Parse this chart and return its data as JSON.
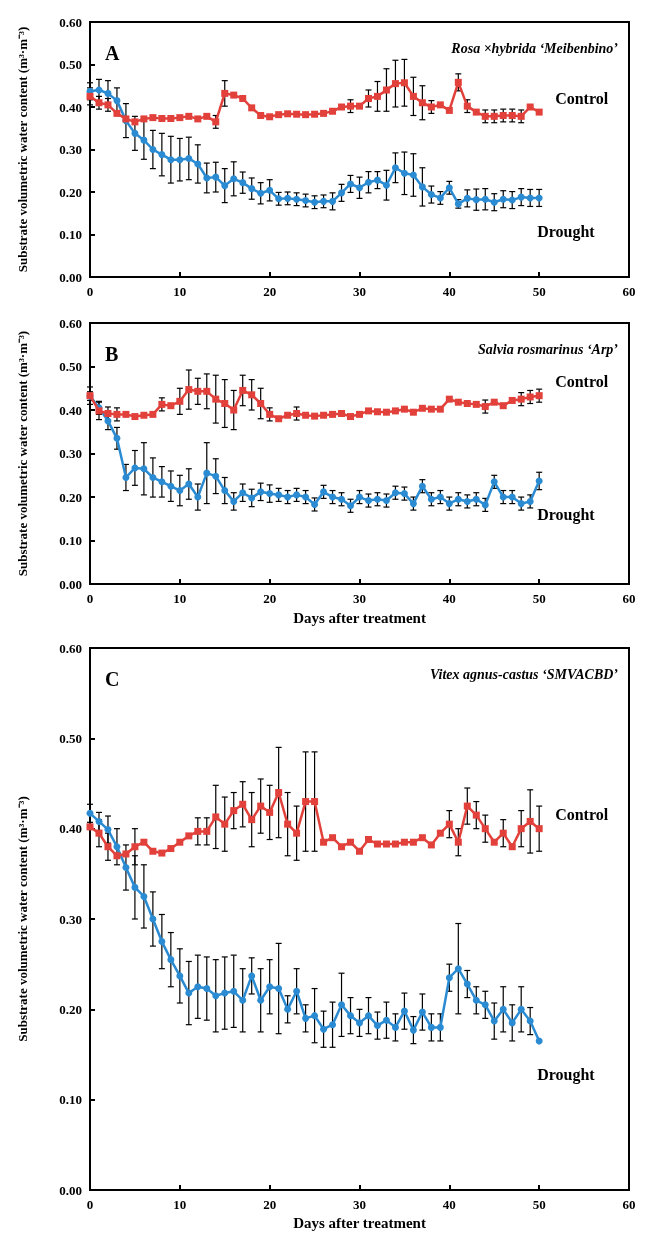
{
  "chart_data": [
    {
      "type": "line",
      "title": "A",
      "subtitle": "Rosa ×hybrida ‘Meibenbino’",
      "ylabel": "Substrate volumetric water content (m³·m⁻³)",
      "xlim": [
        0,
        60
      ],
      "xticks": [
        0,
        10,
        20,
        30,
        40,
        50,
        60
      ],
      "ylim": [
        0,
        0.6
      ],
      "yticks": [
        {
          "value": 0,
          "label": "0.00"
        },
        {
          "value": 0.1,
          "label": "0.10"
        },
        {
          "value": 0.2,
          "label": "0.20"
        },
        {
          "value": 0.3,
          "label": "0.30"
        },
        {
          "value": 0.4,
          "label": "0.40"
        },
        {
          "value": 0.5,
          "label": "0.50"
        },
        {
          "value": 0.6,
          "label": "0.60"
        }
      ],
      "grid": false,
      "legend": false,
      "x": [
        0,
        1,
        2,
        3,
        4,
        5,
        6,
        7,
        8,
        9,
        10,
        11,
        12,
        13,
        14,
        15,
        16,
        17,
        18,
        19,
        20,
        21,
        22,
        23,
        24,
        25,
        26,
        27,
        28,
        29,
        30,
        31,
        32,
        33,
        34,
        35,
        36,
        37,
        38,
        39,
        40,
        41,
        42,
        43,
        44,
        45,
        46,
        47,
        48,
        49,
        50
      ],
      "series": [
        {
          "name": "Control",
          "color": "#e2413b",
          "marker": "square",
          "values": [
            0.425,
            0.41,
            0.405,
            0.385,
            0.372,
            0.365,
            0.372,
            0.375,
            0.373,
            0.373,
            0.375,
            0.378,
            0.372,
            0.378,
            0.365,
            0.432,
            0.428,
            0.42,
            0.398,
            0.38,
            0.377,
            0.382,
            0.384,
            0.383,
            0.382,
            0.383,
            0.385,
            0.39,
            0.4,
            0.402,
            0.402,
            0.42,
            0.425,
            0.44,
            0.455,
            0.457,
            0.425,
            0.41,
            0.4,
            0.405,
            0.392,
            0.458,
            0.402,
            0.388,
            0.378,
            0.378,
            0.38,
            0.38,
            0.378,
            0.4,
            0.388
          ],
          "errors": [
            0.02,
            0.015,
            0.015,
            null,
            null,
            null,
            null,
            null,
            null,
            null,
            null,
            null,
            null,
            null,
            0.015,
            0.03,
            null,
            null,
            null,
            null,
            null,
            null,
            null,
            null,
            null,
            null,
            null,
            null,
            null,
            0.015,
            null,
            0.02,
            0.035,
            0.05,
            0.055,
            0.055,
            0.045,
            0.04,
            0.015,
            null,
            null,
            0.02,
            0.015,
            null,
            0.015,
            0.015,
            0.015,
            0.015,
            0.015,
            null,
            null
          ]
        },
        {
          "name": "Drought",
          "color": "#2a8bd2",
          "marker": "circle",
          "values": [
            0.437,
            0.44,
            0.432,
            0.415,
            0.368,
            0.338,
            0.322,
            0.3,
            0.288,
            0.276,
            0.276,
            0.279,
            0.266,
            0.233,
            0.235,
            0.215,
            0.231,
            0.222,
            0.208,
            0.197,
            0.204,
            0.184,
            0.185,
            0.183,
            0.18,
            0.176,
            0.178,
            0.178,
            0.198,
            0.219,
            0.21,
            0.223,
            0.228,
            0.216,
            0.257,
            0.244,
            0.24,
            0.212,
            0.194,
            0.186,
            0.21,
            0.172,
            0.185,
            0.182,
            0.183,
            0.176,
            0.183,
            0.181,
            0.188,
            0.186,
            0.186
          ],
          "errors": [
            0.02,
            0.025,
            0.03,
            0.03,
            0.04,
            0.04,
            0.045,
            0.045,
            0.05,
            0.055,
            0.05,
            0.05,
            0.045,
            0.035,
            0.035,
            0.04,
            0.04,
            0.025,
            0.025,
            0.025,
            0.025,
            0.015,
            0.015,
            0.015,
            0.015,
            0.015,
            0.015,
            0.02,
            0.02,
            0.02,
            0.025,
            0.025,
            0.02,
            0.035,
            0.035,
            0.05,
            0.05,
            0.045,
            0.02,
            0.015,
            0.015,
            0.01,
            0.02,
            0.025,
            0.025,
            0.02,
            0.02,
            0.02,
            0.02,
            0.02,
            0.02
          ]
        }
      ]
    },
    {
      "type": "line",
      "title": "B",
      "subtitle": "Salvia rosmarinus ‘Arp’",
      "xlabel": "Days after treatment",
      "ylabel": "Substrate volumetric water content (m³·m⁻³)",
      "xlim": [
        0,
        60
      ],
      "xticks": [
        0,
        10,
        20,
        30,
        40,
        50,
        60
      ],
      "ylim": [
        0,
        0.6
      ],
      "yticks": [
        {
          "value": 0,
          "label": "0.00"
        },
        {
          "value": 0.1,
          "label": "0.10"
        },
        {
          "value": 0.2,
          "label": "0.20"
        },
        {
          "value": 0.3,
          "label": "0.30"
        },
        {
          "value": 0.4,
          "label": "0.40"
        },
        {
          "value": 0.5,
          "label": "0.50"
        },
        {
          "value": 0.6,
          "label": "0.60"
        }
      ],
      "grid": false,
      "legend": false,
      "x": [
        0,
        1,
        2,
        3,
        4,
        5,
        6,
        7,
        8,
        9,
        10,
        11,
        12,
        13,
        14,
        15,
        16,
        17,
        18,
        19,
        20,
        21,
        22,
        23,
        24,
        25,
        26,
        27,
        28,
        29,
        30,
        31,
        32,
        33,
        34,
        35,
        36,
        37,
        38,
        39,
        40,
        41,
        42,
        43,
        44,
        45,
        46,
        47,
        48,
        49,
        50
      ],
      "series": [
        {
          "name": "Control",
          "color": "#e2413b",
          "marker": "square",
          "values": [
            0.433,
            0.398,
            0.392,
            0.39,
            0.39,
            0.385,
            0.388,
            0.39,
            0.413,
            0.41,
            0.42,
            0.447,
            0.443,
            0.443,
            0.425,
            0.415,
            0.4,
            0.445,
            0.435,
            0.415,
            0.39,
            0.38,
            0.388,
            0.392,
            0.388,
            0.386,
            0.388,
            0.39,
            0.392,
            0.385,
            0.39,
            0.398,
            0.396,
            0.395,
            0.398,
            0.402,
            0.395,
            0.404,
            0.402,
            0.402,
            0.425,
            0.418,
            0.415,
            0.413,
            0.408,
            0.418,
            0.41,
            0.422,
            0.425,
            0.43,
            0.433
          ],
          "errors": [
            0.02,
            0.02,
            0.015,
            0.015,
            null,
            null,
            null,
            null,
            0.015,
            null,
            0.03,
            0.045,
            0.03,
            0.04,
            0.055,
            0.055,
            0.045,
            0.035,
            0.035,
            0.035,
            0.015,
            null,
            null,
            0.015,
            null,
            null,
            null,
            null,
            null,
            null,
            null,
            null,
            null,
            null,
            null,
            null,
            null,
            null,
            null,
            null,
            null,
            null,
            null,
            null,
            0.015,
            null,
            null,
            null,
            0.015,
            0.015,
            0.015
          ]
        },
        {
          "name": "Drought",
          "color": "#2a8bd2",
          "marker": "circle",
          "values": [
            0.432,
            0.405,
            0.375,
            0.335,
            0.245,
            0.267,
            0.265,
            0.245,
            0.235,
            0.225,
            0.215,
            0.23,
            0.2,
            0.255,
            0.248,
            0.215,
            0.19,
            0.21,
            0.198,
            0.212,
            0.208,
            0.205,
            0.2,
            0.205,
            0.2,
            0.183,
            0.212,
            0.2,
            0.195,
            0.18,
            0.2,
            0.192,
            0.195,
            0.192,
            0.21,
            0.208,
            0.185,
            0.225,
            0.195,
            0.2,
            0.185,
            0.195,
            0.19,
            0.195,
            0.182,
            0.235,
            0.2,
            0.2,
            0.185,
            0.19,
            0.237
          ],
          "errors": [
            0.01,
            0.015,
            0.02,
            0.025,
            0.03,
            0.04,
            0.06,
            0.045,
            0.035,
            0.035,
            0.035,
            0.035,
            0.03,
            0.07,
            0.04,
            0.03,
            0.02,
            0.02,
            0.02,
            0.02,
            0.02,
            0.015,
            0.015,
            0.015,
            0.015,
            0.015,
            0.015,
            0.015,
            0.015,
            0.015,
            0.015,
            0.015,
            0.015,
            0.015,
            0.015,
            0.015,
            0.015,
            0.015,
            0.015,
            0.015,
            0.015,
            0.015,
            0.015,
            0.015,
            0.015,
            0.015,
            0.015,
            0.015,
            0.015,
            0.015,
            0.02
          ]
        }
      ]
    },
    {
      "type": "line",
      "title": "C",
      "subtitle": "Vitex agnus-castus ‘SMVACBD’",
      "xlabel": "Days after treatment",
      "ylabel": "Substrate volumetric water content (m³·m⁻³)",
      "xlim": [
        0,
        60
      ],
      "xticks": [
        0,
        10,
        20,
        30,
        40,
        50,
        60
      ],
      "ylim": [
        0,
        0.6
      ],
      "yticks": [
        {
          "value": 0,
          "label": "0.00"
        },
        {
          "value": 0.1,
          "label": "0.10"
        },
        {
          "value": 0.2,
          "label": "0.20"
        },
        {
          "value": 0.3,
          "label": "0.30"
        },
        {
          "value": 0.4,
          "label": "0.40"
        },
        {
          "value": 0.5,
          "label": "0.50"
        },
        {
          "value": 0.6,
          "label": "0.60"
        }
      ],
      "grid": false,
      "legend": false,
      "x": [
        0,
        1,
        2,
        3,
        4,
        5,
        6,
        7,
        8,
        9,
        10,
        11,
        12,
        13,
        14,
        15,
        16,
        17,
        18,
        19,
        20,
        21,
        22,
        23,
        24,
        25,
        26,
        27,
        28,
        29,
        30,
        31,
        32,
        33,
        34,
        35,
        36,
        37,
        38,
        39,
        40,
        41,
        42,
        43,
        44,
        45,
        46,
        47,
        48,
        49,
        50
      ],
      "series": [
        {
          "name": "Control",
          "color": "#e2413b",
          "marker": "square",
          "values": [
            0.402,
            0.395,
            0.38,
            0.37,
            0.372,
            0.38,
            0.385,
            0.375,
            0.373,
            0.378,
            0.385,
            0.392,
            0.397,
            0.397,
            0.413,
            0.405,
            0.42,
            0.427,
            0.41,
            0.425,
            0.418,
            0.44,
            0.405,
            0.395,
            0.43,
            0.43,
            0.385,
            0.39,
            0.38,
            0.385,
            0.375,
            0.388,
            0.383,
            0.383,
            0.383,
            0.385,
            0.385,
            0.39,
            0.382,
            0.395,
            0.405,
            0.385,
            0.425,
            0.415,
            0.4,
            0.385,
            0.395,
            0.38,
            0.4,
            0.408,
            0.4
          ],
          "errors": [
            null,
            0.015,
            0.015,
            null,
            null,
            0.02,
            null,
            null,
            null,
            null,
            null,
            null,
            0.015,
            0.015,
            0.035,
            0.03,
            0.02,
            0.025,
            0.03,
            0.03,
            0.03,
            0.05,
            0.035,
            0.03,
            0.055,
            0.055,
            null,
            null,
            null,
            null,
            null,
            null,
            null,
            null,
            null,
            null,
            null,
            null,
            null,
            null,
            0.015,
            0.015,
            0.02,
            0.015,
            0.015,
            null,
            0.015,
            null,
            0.02,
            0.035,
            0.025
          ]
        },
        {
          "name": "Drought",
          "color": "#2a8bd2",
          "marker": "circle",
          "values": [
            0.417,
            0.408,
            0.399,
            0.38,
            0.357,
            0.335,
            0.325,
            0.3,
            0.275,
            0.255,
            0.237,
            0.218,
            0.225,
            0.223,
            0.215,
            0.218,
            0.22,
            0.21,
            0.237,
            0.21,
            0.225,
            0.223,
            0.2,
            0.22,
            0.19,
            0.193,
            0.178,
            0.183,
            0.205,
            0.193,
            0.185,
            0.193,
            0.182,
            0.188,
            0.18,
            0.198,
            0.177,
            0.197,
            0.18,
            0.18,
            0.235,
            0.245,
            0.228,
            0.21,
            0.205,
            0.187,
            0.2,
            0.185,
            0.2,
            0.187,
            0.165
          ],
          "errors": [
            0.01,
            0.01,
            0.015,
            0.02,
            0.025,
            0.035,
            0.035,
            0.03,
            0.03,
            0.03,
            0.03,
            0.035,
            0.035,
            0.035,
            0.04,
            0.04,
            0.04,
            0.035,
            0.02,
            0.035,
            0.03,
            0.05,
            0.015,
            0.025,
            0.015,
            0.03,
            0.02,
            0.025,
            0.035,
            0.02,
            0.015,
            0.02,
            0.015,
            0.02,
            0.015,
            0.02,
            0.015,
            0.02,
            0.015,
            0.015,
            0.015,
            0.05,
            0.015,
            0.015,
            0.015,
            0.02,
            0.025,
            0.02,
            0.025,
            0.015,
            null
          ]
        }
      ]
    }
  ]
}
